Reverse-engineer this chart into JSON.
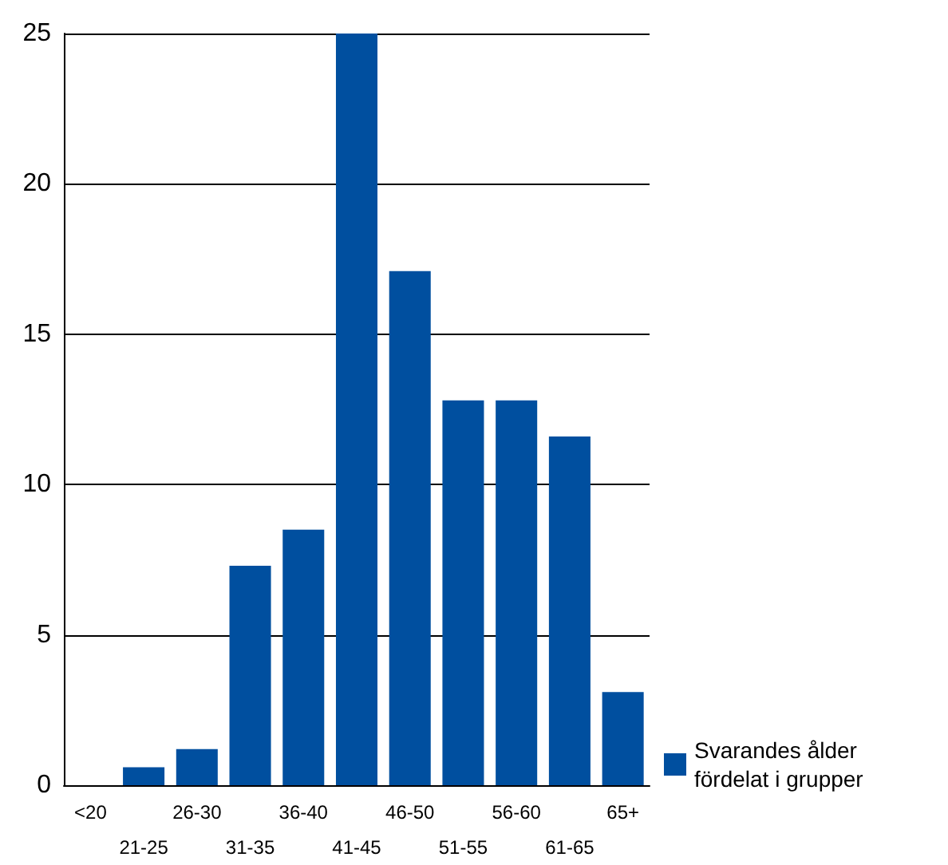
{
  "chart_data": {
    "type": "bar",
    "categories": [
      "<20",
      "21-25",
      "26-30",
      "31-35",
      "36-40",
      "41-45",
      "46-50",
      "51-55",
      "56-60",
      "61-65",
      "65+"
    ],
    "series": [
      {
        "name": "Svarandes ålder fördelat i grupper",
        "color": "#004f9f",
        "values": [
          0,
          0.6,
          1.2,
          7.3,
          8.5,
          25,
          17.1,
          12.8,
          12.8,
          11.6,
          3.1
        ]
      }
    ],
    "ylim": [
      0,
      25
    ],
    "yticks": [
      0,
      5,
      10,
      15,
      20,
      25
    ],
    "grid": "y",
    "legend": "bottom right"
  }
}
